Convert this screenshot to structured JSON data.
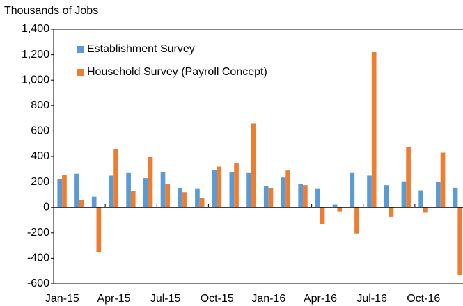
{
  "chart_data": {
    "type": "bar",
    "y_label": "Thousands of Jobs",
    "categories": [
      "Jan-15",
      null,
      null,
      "Apr-15",
      null,
      null,
      "Jul-15",
      null,
      null,
      "Oct-15",
      null,
      null,
      "Jan-16",
      null,
      null,
      "Apr-16",
      null,
      null,
      "Jul-16",
      null,
      null,
      "Oct-16",
      null,
      null
    ],
    "series": [
      {
        "name": "Establishment Survey",
        "color": "#5b9bd5",
        "values": [
          220,
          265,
          85,
          250,
          270,
          230,
          275,
          150,
          145,
          295,
          280,
          270,
          165,
          235,
          185,
          145,
          20,
          270,
          250,
          175,
          205,
          135,
          200,
          155
        ]
      },
      {
        "name": "Household Survey (Payroll Concept)",
        "color": "#ed7d31",
        "values": [
          255,
          60,
          -350,
          460,
          130,
          395,
          185,
          120,
          75,
          320,
          345,
          660,
          150,
          290,
          175,
          -130,
          -35,
          -205,
          1220,
          -75,
          475,
          -40,
          430,
          -530
        ]
      }
    ],
    "ylim": [
      -600,
      1400
    ],
    "yticks": [
      -600,
      -400,
      -200,
      0,
      200,
      400,
      600,
      800,
      {
        "value": 1000,
        "label": "1,000"
      },
      {
        "value": 1200,
        "label": "1,200"
      },
      {
        "value": 1400,
        "label": "1,400"
      }
    ],
    "grid": false,
    "legend": "top-left"
  }
}
